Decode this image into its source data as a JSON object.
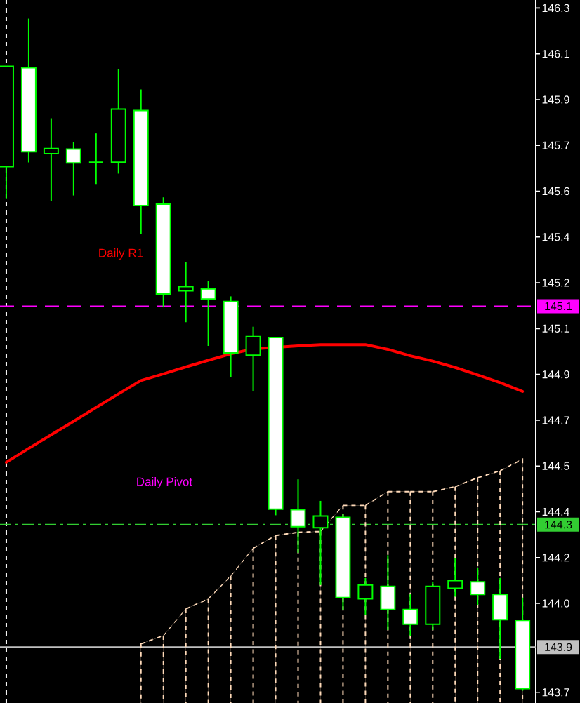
{
  "chart_data": {
    "type": "candlestick",
    "categories": [
      null,
      null,
      null,
      null,
      null,
      null,
      null,
      null,
      null,
      null,
      null,
      null,
      null,
      null,
      null,
      null,
      null,
      null,
      null,
      null,
      null,
      null,
      null,
      null
    ],
    "ohlc": [
      [
        145.664,
        146.041,
        145.545,
        146.041
      ],
      [
        146.036,
        146.22,
        145.68,
        145.72
      ],
      [
        145.713,
        145.846,
        145.535,
        145.732
      ],
      [
        145.73,
        145.756,
        145.556,
        145.678
      ],
      [
        145.681,
        145.789,
        145.599,
        145.681
      ],
      [
        145.681,
        146.031,
        145.638,
        145.88
      ],
      [
        145.875,
        145.954,
        145.41,
        145.518
      ],
      [
        145.523,
        145.549,
        145.137,
        145.186
      ],
      [
        145.198,
        145.307,
        145.08,
        145.214
      ],
      [
        145.205,
        145.236,
        144.991,
        145.167
      ],
      [
        145.158,
        145.177,
        144.873,
        144.965
      ],
      [
        144.956,
        145.063,
        144.821,
        145.026
      ],
      [
        145.023,
        145.023,
        144.355,
        144.378
      ],
      [
        144.376,
        144.49,
        144.214,
        144.312
      ],
      [
        144.308,
        144.409,
        144.093,
        144.352
      ],
      [
        144.347,
        144.36,
        143.998,
        144.046
      ],
      [
        144.041,
        144.119,
        143.981,
        144.093
      ],
      [
        144.088,
        144.205,
        143.924,
        144.001
      ],
      [
        144.001,
        144.058,
        143.903,
        143.946
      ],
      [
        143.946,
        144.106,
        143.924,
        144.088
      ],
      [
        144.081,
        144.193,
        144.049,
        144.11
      ],
      [
        144.105,
        144.157,
        144.018,
        144.058
      ],
      [
        144.058,
        144.119,
        143.816,
        143.963
      ],
      [
        143.96,
        144.046,
        143.696,
        143.704
      ]
    ],
    "color": "#00ff00",
    "colors": [
      "#000000",
      "#ffffff",
      "#000000",
      "#ffffff",
      "#00ff00",
      "#000000",
      "#ffffff",
      "#ffffff",
      "#000000",
      "#ffffff",
      "#ffffff",
      "#000000",
      "#ffffff",
      "#ffffff",
      "#000000",
      "#ffffff",
      "#000000",
      "#ffffff",
      "#ffffff",
      "#000000",
      "#000000",
      "#ffffff",
      "#ffffff",
      "#ffffff"
    ],
    "series": [
      {
        "type": "line",
        "color": "#ff0000",
        "values": [
          144.554,
          144.606,
          144.657,
          144.708,
          144.76,
          144.811,
          144.861,
          144.886,
          144.912,
          144.937,
          144.961,
          144.98,
          null,
          144.991,
          144.996,
          144.996,
          144.996,
          144.978,
          144.954,
          144.934,
          144.91,
          144.882,
          144.853,
          144.82
        ]
      },
      {
        "type": "area",
        "color": "#ffdab9",
        "line_style": "dotted",
        "values": [
          null,
          null,
          null,
          null,
          null,
          null,
          143.872,
          143.903,
          144.003,
          144.041,
          144.127,
          144.231,
          144.279,
          144.291,
          144.294,
          144.392,
          144.392,
          144.444,
          144.444,
          144.444,
          144.462,
          144.496,
          144.522,
          144.566
        ]
      }
    ],
    "ylim": [
      143.65,
      146.29
    ],
    "yticks": [
      {
        "value": 146.26,
        "label": "146.3"
      },
      {
        "value": 146.088,
        "label": "146.1"
      },
      {
        "value": 145.916,
        "label": "145.9"
      },
      {
        "value": 145.744,
        "label": "145.7"
      },
      {
        "value": 145.572,
        "label": "145.6"
      },
      {
        "value": 145.4,
        "label": "145.4"
      },
      {
        "value": 145.228,
        "label": "145.2"
      },
      {
        "value": 145.056,
        "label": "145.1"
      },
      {
        "value": 144.884,
        "label": "144.9"
      },
      {
        "value": 144.712,
        "label": "144.7"
      },
      {
        "value": 144.54,
        "label": "144.5"
      },
      {
        "value": 144.368,
        "label": "144.4"
      },
      {
        "value": 144.196,
        "label": "144.2"
      },
      {
        "value": 144.024,
        "label": "144.0"
      },
      {
        "value": 143.69,
        "label": "143.7"
      }
    ],
    "tick_labels": "y",
    "ref_lines": [
      {
        "axis": "y",
        "value": 145.14,
        "label": "145.1",
        "color": "#ff00ff",
        "line_style": "dashed"
      },
      {
        "axis": "y",
        "value": 144.32,
        "label": "144.3",
        "color": "#32cd32",
        "line_style": "dashdot"
      },
      {
        "axis": "y",
        "value": 143.86,
        "label": "143.9",
        "color": "#c0c0c0",
        "line_style": "solid"
      }
    ],
    "annotations": [
      "Daily R1",
      "Daily Pivot"
    ]
  }
}
